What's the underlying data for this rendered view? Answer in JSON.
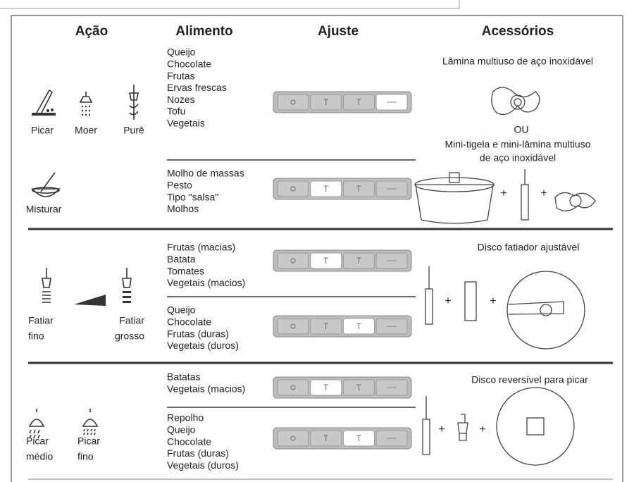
{
  "header": {
    "columns": [
      "Ação",
      "Alimento",
      "Ajuste",
      "Acessórios"
    ]
  },
  "plus": "+",
  "sections": [
    {
      "actions": [
        {
          "lines": [
            "Picar"
          ]
        },
        {
          "lines": [
            "Moer"
          ]
        },
        {
          "lines": [
            "Purê"
          ]
        },
        {
          "lines": [
            "Misturar"
          ]
        }
      ],
      "food_groups": [
        [
          "Queijo",
          "Chocolate",
          "Frutas",
          "Ervas frescas",
          "Nozes",
          "Tofu",
          "Vegetais"
        ],
        [
          "Molho de massas",
          "Pesto",
          "Tipo \"salsa\"",
          "Molhos"
        ]
      ],
      "accessories": {
        "option_1": [
          "Lâmina multiuso de aço inoxidável"
        ],
        "or": "OU",
        "option_2": [
          "Mini-tigela e mini-lâmina multiuso",
          "de aço inoxidável"
        ]
      }
    },
    {
      "actions": [
        {
          "lines": [
            "Fatiar",
            "fino"
          ]
        },
        {
          "lines": [
            "Fatiar",
            "grosso"
          ]
        }
      ],
      "food_groups": [
        [
          "Frutas (macias)",
          "Batata",
          "Tomates",
          "Vegetais (macios)"
        ],
        [
          "Queijo",
          "Chocolate",
          "Frutas (duras)",
          "Vegetais (duros)"
        ]
      ],
      "accessories": {
        "title": "Disco fatiador ajustável"
      }
    },
    {
      "actions": [
        {
          "lines": [
            "Picar",
            "médio"
          ]
        },
        {
          "lines": [
            "Picar",
            "fino"
          ]
        }
      ],
      "food_groups": [
        [
          "Batatas",
          "Vegetais (macios)"
        ],
        [
          "Repolho",
          "Queijo",
          "Chocolate",
          "Frutas (duras)",
          "Vegetais (duros)"
        ]
      ],
      "accessories": {
        "title": "Disco reversível para picar"
      }
    }
  ]
}
